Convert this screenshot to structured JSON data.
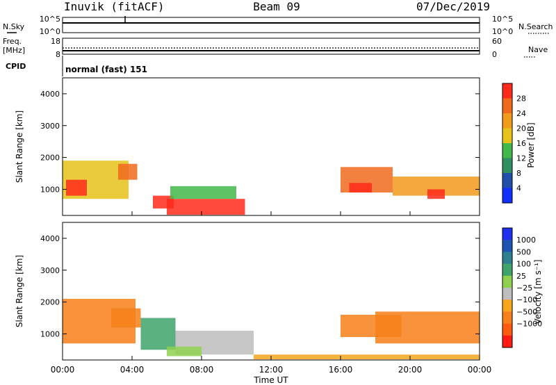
{
  "header": {
    "station": "Inuvik (fitACF)",
    "beam": "Beam 09",
    "date": "07/Dec/2019"
  },
  "strips": {
    "nsky_label": "N.Sky",
    "nsky_ticks": [
      "10^5",
      "10^0"
    ],
    "nsearch_label": "N.Search",
    "nsearch_ticks": [
      "10^5",
      "10^0"
    ],
    "freq_label_line1": "Freq.",
    "freq_label_line2": "[MHz]",
    "freq_ticks": [
      "18",
      "8"
    ],
    "nave_label": "Nave",
    "nave_ticks": [
      "60",
      "0"
    ],
    "cpid_label": "CPID",
    "cpid_text": "normal (fast) 151"
  },
  "colors": {
    "power_scale": [
      "#1030ff",
      "#1f4fa8",
      "#2f8f5f",
      "#43b84a",
      "#e6c21a",
      "#f29a1c",
      "#f06a1c",
      "#ff2a1a"
    ],
    "velocity_scale": [
      "#ff1a12",
      "#ff5a10",
      "#f7801a",
      "#f7a51c",
      "#bdbdbd",
      "#8fd14f",
      "#3fa36b",
      "#2e7f8f",
      "#1f55b0",
      "#1f2ff0"
    ]
  },
  "chart_data": [
    {
      "type": "heatmap",
      "name": "power",
      "ylabel": "Slant Range [km]",
      "yticks": [
        "4000",
        "3000",
        "2000",
        "1000"
      ],
      "ylim": [
        180,
        4500
      ],
      "xticks": [
        "00:00",
        "04:00",
        "08:00",
        "12:00",
        "16:00",
        "20:00",
        "00:00"
      ],
      "colorbar_label": "Power [dB]",
      "colorbar_ticks": [
        "28",
        "24",
        "20",
        "16",
        "12",
        "8",
        "4"
      ],
      "colorbar_range": [
        0,
        32
      ],
      "regions": [
        {
          "t0": 0.0,
          "t1": 3.8,
          "r0": 700,
          "r1": 1900,
          "color_index": 4
        },
        {
          "t0": 0.2,
          "t1": 1.4,
          "r0": 800,
          "r1": 1300,
          "color_index": 7
        },
        {
          "t0": 3.2,
          "t1": 4.3,
          "r0": 1300,
          "r1": 1800,
          "color_index": 6
        },
        {
          "t0": 5.2,
          "t1": 6.4,
          "r0": 400,
          "r1": 800,
          "color_index": 7
        },
        {
          "t0": 6.0,
          "t1": 10.5,
          "r0": 200,
          "r1": 700,
          "color_index": 7
        },
        {
          "t0": 6.2,
          "t1": 10.0,
          "r0": 700,
          "r1": 1100,
          "color_index": 3
        },
        {
          "t0": 16.0,
          "t1": 19.0,
          "r0": 900,
          "r1": 1700,
          "color_index": 6
        },
        {
          "t0": 16.5,
          "t1": 17.8,
          "r0": 900,
          "r1": 1200,
          "color_index": 7
        },
        {
          "t0": 19.0,
          "t1": 24.0,
          "r0": 800,
          "r1": 1400,
          "color_index": 5
        },
        {
          "t0": 21.0,
          "t1": 22.0,
          "r0": 700,
          "r1": 1000,
          "color_index": 7
        }
      ]
    },
    {
      "type": "heatmap",
      "name": "velocity",
      "ylabel": "Slant Range [km]",
      "yticks": [
        "4000",
        "3000",
        "2000",
        "1000"
      ],
      "ylim": [
        180,
        4500
      ],
      "xticks": [
        "00:00",
        "04:00",
        "08:00",
        "12:00",
        "16:00",
        "20:00",
        "00:00"
      ],
      "xlabel": "Time UT",
      "colorbar_label": "Velocity [m s⁻¹]",
      "colorbar_ticks": [
        "1000",
        "500",
        "100",
        "25",
        "−25",
        "−100",
        "−500",
        "−1000"
      ],
      "regions": [
        {
          "t0": 0.0,
          "t1": 4.2,
          "r0": 700,
          "r1": 2100,
          "color_index": 2
        },
        {
          "t0": 2.8,
          "t1": 4.5,
          "r0": 1200,
          "r1": 1800,
          "color_index": 2
        },
        {
          "t0": 4.5,
          "t1": 6.5,
          "r0": 500,
          "r1": 1500,
          "color_index": 6
        },
        {
          "t0": 6.5,
          "t1": 11.0,
          "r0": 350,
          "r1": 1100,
          "color_index": 4
        },
        {
          "t0": 6.0,
          "t1": 8.0,
          "r0": 300,
          "r1": 600,
          "color_index": 5
        },
        {
          "t0": 16.0,
          "t1": 19.5,
          "r0": 900,
          "r1": 1600,
          "color_index": 2
        },
        {
          "t0": 18.0,
          "t1": 24.0,
          "r0": 700,
          "r1": 1700,
          "color_index": 2
        },
        {
          "t0": 11.0,
          "t1": 24.0,
          "r0": 200,
          "r1": 350,
          "color_index": 3
        }
      ]
    }
  ]
}
